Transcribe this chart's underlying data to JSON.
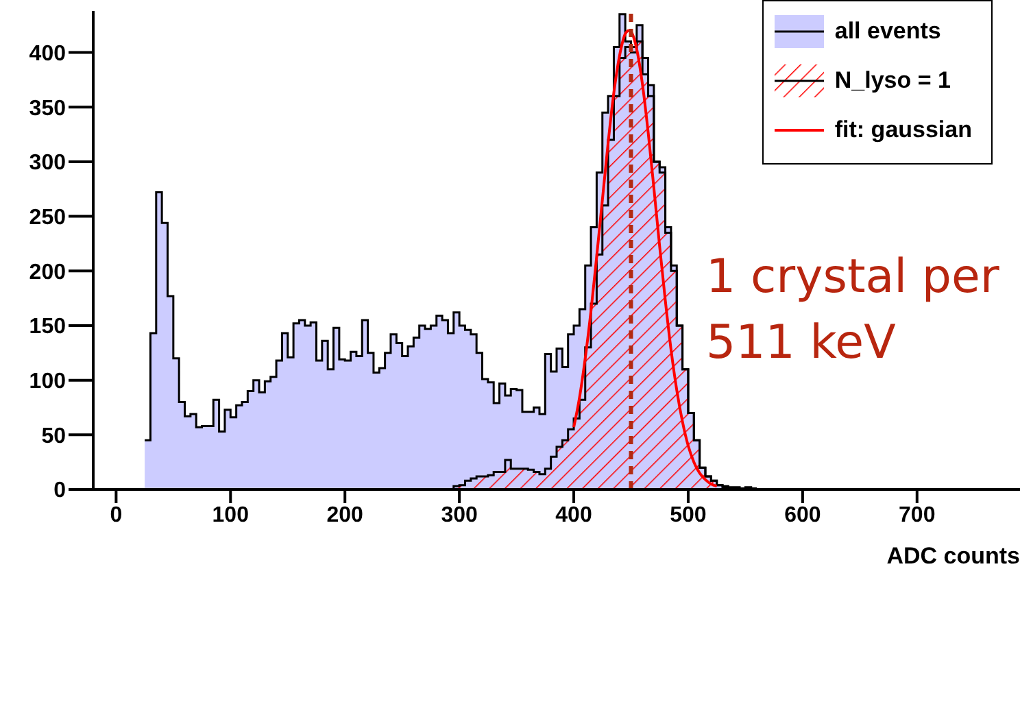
{
  "chart_data": {
    "type": "histogram",
    "xlabel": "ADC counts",
    "bins": [
      25,
      30,
      35,
      40,
      45,
      50,
      55,
      60,
      65,
      70,
      75,
      80,
      85,
      90,
      95,
      100,
      105,
      110,
      115,
      120,
      125,
      130,
      135,
      140,
      145,
      150,
      155,
      160,
      165,
      170,
      175,
      180,
      185,
      190,
      195,
      200,
      205,
      210,
      215,
      220,
      225,
      230,
      235,
      240,
      245,
      250,
      255,
      260,
      265,
      270,
      275,
      280,
      285,
      290,
      295,
      300,
      305,
      310,
      315,
      320,
      325,
      330,
      335,
      340,
      345,
      350,
      355,
      360,
      365,
      370,
      375,
      380,
      385,
      390,
      395,
      400,
      405,
      410,
      415,
      420,
      425,
      430,
      435,
      440,
      445,
      450,
      455,
      460,
      465,
      470,
      475,
      480,
      485,
      490,
      495,
      500,
      505,
      510,
      515,
      520,
      525,
      530,
      535,
      540,
      545,
      550,
      555,
      560
    ],
    "series": [
      {
        "name": "all events",
        "color": "#ccccff",
        "values": [
          45,
          143,
          272,
          244,
          177,
          120,
          80,
          67,
          69,
          57,
          58,
          58,
          82,
          53,
          73,
          66,
          77,
          80,
          90,
          100,
          89,
          99,
          103,
          118,
          143,
          121,
          152,
          155,
          150,
          153,
          118,
          136,
          110,
          148,
          119,
          118,
          126,
          122,
          155,
          125,
          107,
          111,
          125,
          142,
          134,
          122,
          131,
          139,
          150,
          147,
          150,
          159,
          155,
          143,
          162,
          150,
          146,
          142,
          125,
          101,
          98,
          79,
          97,
          86,
          92,
          91,
          71,
          71,
          75,
          69,
          124,
          108,
          129,
          112,
          142,
          150,
          165,
          205,
          240,
          290,
          345,
          360,
          405,
          435,
          410,
          405,
          425,
          395,
          370,
          300,
          295,
          240,
          205,
          150,
          110,
          70,
          45,
          20,
          12,
          8,
          4,
          3,
          2,
          2,
          1,
          2,
          1
        ]
      },
      {
        "name": "N_lyso = 1",
        "color": "#ff0000",
        "values": [
          0,
          0,
          0,
          0,
          0,
          0,
          0,
          0,
          0,
          0,
          0,
          0,
          0,
          0,
          0,
          0,
          0,
          0,
          0,
          0,
          0,
          0,
          0,
          0,
          0,
          0,
          0,
          0,
          0,
          0,
          0,
          0,
          0,
          0,
          0,
          0,
          0,
          0,
          0,
          0,
          0,
          0,
          0,
          0,
          0,
          0,
          0,
          0,
          0,
          0,
          0,
          0,
          0,
          0,
          3,
          4,
          8,
          10,
          12,
          12,
          13,
          16,
          16,
          27,
          19,
          19,
          19,
          18,
          16,
          14,
          19,
          30,
          39,
          45,
          55,
          65,
          82,
          130,
          170,
          215,
          260,
          320,
          360,
          395,
          405,
          400,
          410,
          380,
          360,
          300,
          290,
          235,
          200,
          150,
          110,
          70,
          45,
          20,
          12,
          8,
          4,
          2,
          1,
          1,
          0,
          0,
          0
        ]
      },
      {
        "name": "fit: gaussian",
        "type": "line",
        "color": "#ff0000",
        "x": [
          400,
          405,
          410,
          415,
          420,
          425,
          430,
          435,
          440,
          445,
          448,
          450,
          455,
          460,
          465,
          470,
          475,
          480,
          485,
          490,
          495,
          500,
          505,
          510,
          515,
          520,
          525
        ],
        "values": [
          57,
          84,
          120,
          163,
          213,
          265,
          317,
          363,
          397,
          417,
          420,
          419,
          403,
          371,
          327,
          276,
          223,
          173,
          128,
          91,
          62,
          40,
          25,
          15,
          9,
          5,
          3
        ]
      }
    ],
    "xlim": [
      -20,
      790
    ],
    "xticks": [
      0,
      100,
      200,
      300,
      400,
      500,
      600,
      700
    ],
    "ylim": [
      0,
      438
    ],
    "yticks": [
      0,
      50,
      100,
      150,
      200,
      250,
      300,
      350,
      400
    ],
    "ref_lines": [
      {
        "axis": "x",
        "value": 450,
        "color": "#b22a12",
        "line_style": "dashed"
      }
    ],
    "annotations": [
      "1 crystal per",
      "511 keV"
    ],
    "legend": "top right",
    "grid": false,
    "marker": "none"
  }
}
